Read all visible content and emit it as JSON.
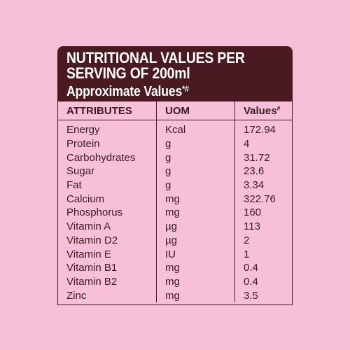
{
  "header": {
    "line1": "NUTRITIONAL VALUES PER",
    "line2": "SERVING OF 200ml",
    "line3": "Approximate Values",
    "line3_mark": "*#"
  },
  "columns": {
    "attributes": "ATTRIBUTES",
    "uom": "UOM",
    "values": "Values",
    "values_mark": "#"
  },
  "rows": [
    {
      "attribute": "Energy",
      "uom": "Kcal",
      "value": "172.94"
    },
    {
      "attribute": "Protein",
      "uom": "g",
      "value": "4"
    },
    {
      "attribute": "Carbohydrates",
      "uom": "g",
      "value": "31.72"
    },
    {
      "attribute": "Sugar",
      "uom": "g",
      "value": "23.6"
    },
    {
      "attribute": "Fat",
      "uom": "g",
      "value": "3.34"
    },
    {
      "attribute": "Calcium",
      "uom": "mg",
      "value": "322.76"
    },
    {
      "attribute": "Phosphorus",
      "uom": "mg",
      "value": "160"
    },
    {
      "attribute": "Vitamin A",
      "uom": "µg",
      "value": "113"
    },
    {
      "attribute": "Vitamin D2",
      "uom": "µg",
      "value": "2"
    },
    {
      "attribute": "Vitamin E",
      "uom": "IU",
      "value": "1"
    },
    {
      "attribute": "Vitamin B1",
      "uom": "mg",
      "value": "0.4"
    },
    {
      "attribute": "Vitamin B2",
      "uom": "mg",
      "value": "0.4"
    },
    {
      "attribute": "Zinc",
      "uom": "mg",
      "value": "3.5"
    }
  ],
  "colors": {
    "background": "#f7bfd8",
    "header_bg": "#4a1a22",
    "text": "#3a1a1e"
  }
}
